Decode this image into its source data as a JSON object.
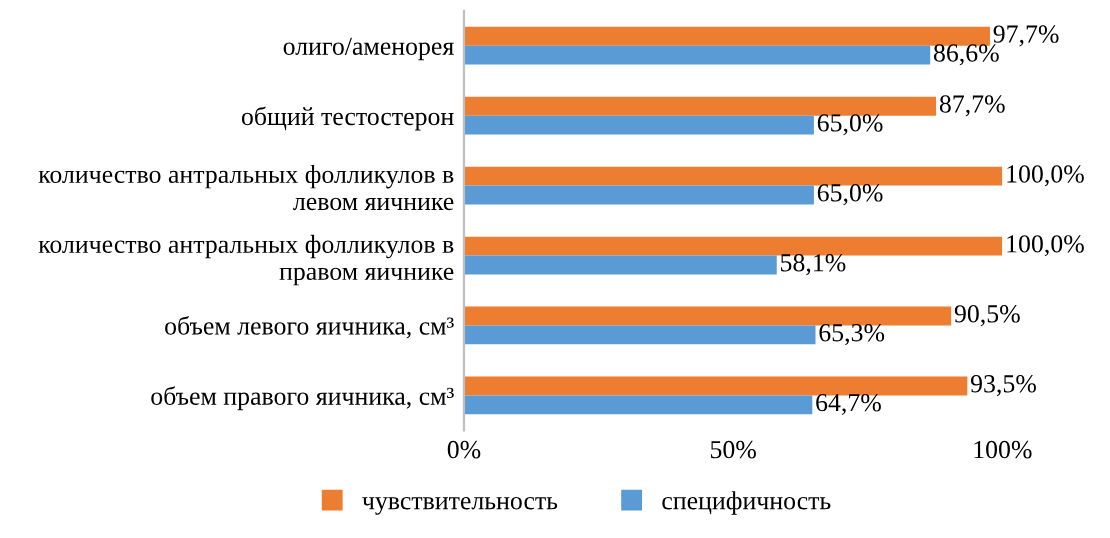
{
  "chart_data": {
    "type": "bar",
    "orientation": "horizontal",
    "categories": [
      "олиго/аменорея",
      "общий тестостерон",
      "количество антральных фолликулов в\nлевом яичнике",
      "количество антральных фолликулов в\nправом яичнике",
      "объем левого яичника, см³",
      "объем правого яичника, см³"
    ],
    "series": [
      {
        "name": "чувствительность",
        "color": "#ed7d31",
        "values": [
          97.7,
          87.7,
          100,
          100,
          90.5,
          93.5
        ],
        "value_labels": [
          "97,7%",
          "87,7%",
          "100,0%",
          "100,0%",
          "90,5%",
          "93,5%"
        ]
      },
      {
        "name": "специфичность",
        "color": "#5b9bd5",
        "values": [
          86.6,
          65.0,
          65.0,
          58.1,
          65.3,
          64.7
        ],
        "value_labels": [
          "86,6%",
          "65,0%",
          "65,0%",
          "58,1%",
          "65,3%",
          "64,7%"
        ]
      }
    ],
    "xlim": [
      0,
      100
    ],
    "xticks": [
      {
        "value": 0,
        "label": "0%"
      },
      {
        "value": 50,
        "label": "50%"
      },
      {
        "value": 100,
        "label": "100%"
      }
    ],
    "grid": false,
    "legend": "bottom"
  }
}
